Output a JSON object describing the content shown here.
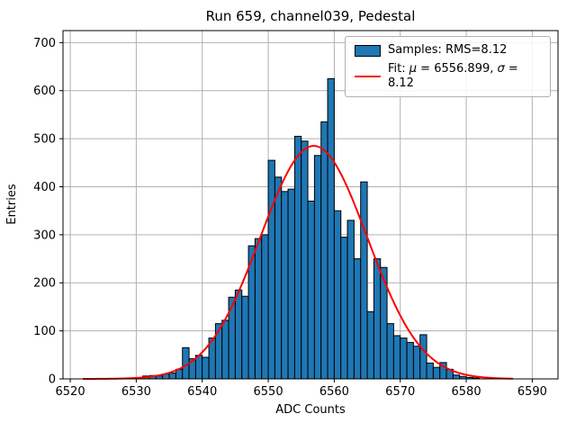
{
  "figure": {
    "background": "#ffffff",
    "plot_background": "#ffffff"
  },
  "chart_data": {
    "type": "bar",
    "title": "Run 659, channel039, Pedestal",
    "xlabel": "ADC Counts",
    "ylabel": "Entries",
    "xlim": [
      6518.9,
      6593.9
    ],
    "ylim": [
      0,
      725
    ],
    "xticks": [
      6520,
      6530,
      6540,
      6550,
      6560,
      6570,
      6580,
      6590
    ],
    "yticks": [
      0,
      100,
      200,
      300,
      400,
      500,
      600,
      700
    ],
    "grid": true,
    "grid_color": "#b0b0b0",
    "bar_color": "#1f77b4",
    "bar_edge_color": "#000000",
    "bin_width": 1,
    "bin_start": 6531,
    "bin_left_edges": [
      6531,
      6532,
      6533,
      6534,
      6535,
      6536,
      6537,
      6538,
      6539,
      6540,
      6541,
      6542,
      6543,
      6544,
      6545,
      6546,
      6547,
      6548,
      6549,
      6550,
      6551,
      6552,
      6553,
      6554,
      6555,
      6556,
      6557,
      6558,
      6559,
      6560,
      6561,
      6562,
      6563,
      6564,
      6565,
      6566,
      6567,
      6568,
      6569,
      6570,
      6571,
      6572,
      6573,
      6574,
      6575,
      6576,
      6577,
      6578,
      6579,
      6580,
      6581
    ],
    "values": [
      6,
      7,
      6,
      10,
      12,
      20,
      65,
      42,
      49,
      45,
      85,
      115,
      122,
      170,
      185,
      172,
      277,
      292,
      300,
      455,
      420,
      390,
      395,
      505,
      495,
      370,
      465,
      535,
      625,
      350,
      295,
      330,
      250,
      410,
      140,
      250,
      232,
      115,
      90,
      85,
      76,
      68,
      92,
      33,
      24,
      34,
      20,
      8,
      5,
      3,
      2
    ],
    "fit": {
      "type": "gaussian",
      "mu": 6556.899,
      "sigma": 8.12,
      "amplitude": 485,
      "color": "#ff0000",
      "line_width": 2,
      "x_range": [
        6522,
        6587
      ]
    },
    "legend_position": "upper right"
  },
  "legend": {
    "samples_label": "Samples: RMS=8.12",
    "fit": {
      "prefix": "Fit: ",
      "mu_symbol": "μ",
      "mu_value": " = 6556.899, ",
      "sigma_symbol": "σ",
      "sigma_value": " = 8.12"
    }
  }
}
